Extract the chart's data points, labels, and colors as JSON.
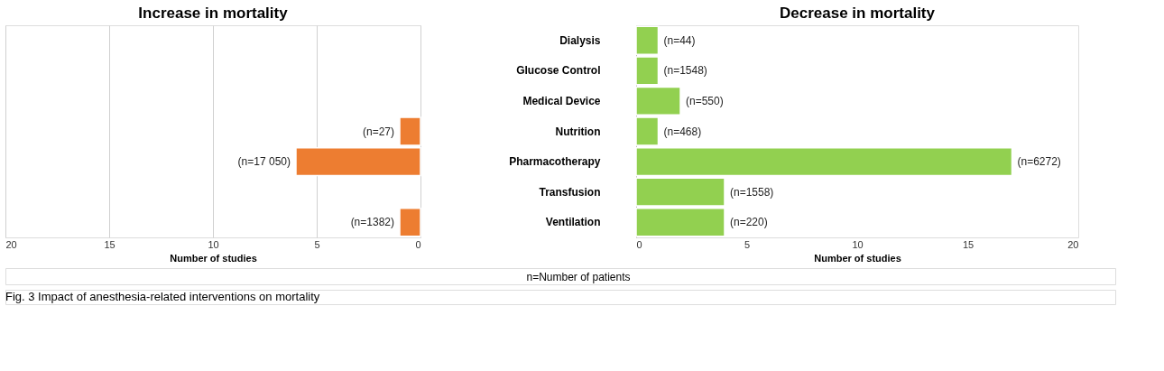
{
  "chart_data": [
    {
      "type": "bar",
      "orientation": "horizontal",
      "title": "Increase in mortality",
      "xlabel": "Number of studies",
      "categories": [
        "Dialysis",
        "Glucose Control",
        "Medical Device",
        "Nutrition",
        "Pharmacotherapy",
        "Transfusion",
        "Ventilation"
      ],
      "values": [
        null,
        null,
        null,
        1,
        6,
        null,
        1
      ],
      "color": "#ed7d31",
      "xlim": [
        20,
        0
      ],
      "xticks": [
        20,
        15,
        10,
        5,
        0
      ],
      "grid": "x",
      "tick_labels": "x",
      "annotations": [
        {
          "text": "(n=27)",
          "x": 1,
          "y": "Nutrition"
        },
        {
          "text": "(n=17 050)",
          "x": 6,
          "y": "Pharmacotherapy"
        },
        {
          "text": "(n=1382)",
          "x": 1,
          "y": "Ventilation"
        },
        "Fig. 3 Impact of anesthesia-related interventions on mortality"
      ]
    },
    {
      "type": "bar",
      "orientation": "horizontal",
      "title": "Decrease in mortality",
      "xlabel": "Number of studies",
      "categories": [
        "Dialysis",
        "Glucose Control",
        "Medical Device",
        "Nutrition",
        "Pharmacotherapy",
        "Transfusion",
        "Ventilation"
      ],
      "values": [
        1,
        1,
        2,
        1,
        17,
        4,
        4
      ],
      "color": "#92d050",
      "xlim": [
        0,
        20
      ],
      "xticks": [
        0,
        5,
        10,
        15,
        20
      ],
      "grid": false,
      "annotations": [
        {
          "text": "(n=44)",
          "x": 1,
          "y": "Dialysis"
        },
        {
          "text": "(n=1548)",
          "x": 1,
          "y": "Glucose Control"
        },
        {
          "text": "(n=550)",
          "x": 2,
          "y": "Medical Device"
        },
        {
          "text": "(n=468)",
          "x": 1,
          "y": "Nutrition"
        },
        {
          "text": "(n=6272)",
          "x": 17,
          "y": "Pharmacotherapy"
        },
        {
          "text": "(n=1558)",
          "x": 4,
          "y": "Transfusion"
        },
        {
          "text": "(n=220)",
          "x": 4,
          "y": "Ventilation"
        },
        "n=Number of patients"
      ]
    }
  ]
}
